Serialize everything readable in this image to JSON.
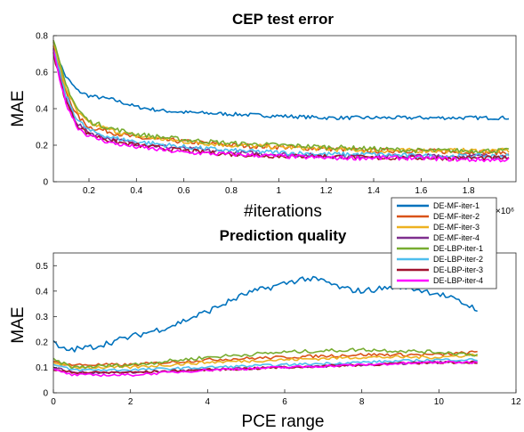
{
  "chart_data": [
    {
      "type": "line",
      "title": "CEP test error",
      "xlabel": "#iterations",
      "ylabel": "MAE",
      "x_exponent_label": "×10⁶",
      "xlim": [
        0.05,
        2.0
      ],
      "ylim": [
        0,
        0.8
      ],
      "xticks": [
        0.2,
        0.4,
        0.6,
        0.8,
        1,
        1.2,
        1.4,
        1.6,
        1.8
      ],
      "xticklabels": [
        "0.2",
        "0.4",
        "0.6",
        "0.8",
        "1",
        "1.2",
        "1.4",
        "1.6",
        "1.8"
      ],
      "yticks": [
        0,
        0.2,
        0.4,
        0.6,
        0.8
      ],
      "yticklabels": [
        "0",
        "0.2",
        "0.4",
        "0.6",
        "0.8"
      ],
      "grid": false,
      "series": [
        {
          "name": "DE-MF-iter-1",
          "color": "#0072bd",
          "x": [
            0.05,
            0.1,
            0.15,
            0.2,
            0.3,
            0.4,
            0.5,
            0.6,
            0.8,
            1.0,
            1.2,
            1.4,
            1.6,
            1.8,
            1.97
          ],
          "values": [
            0.74,
            0.58,
            0.5,
            0.47,
            0.45,
            0.41,
            0.39,
            0.38,
            0.37,
            0.36,
            0.35,
            0.35,
            0.35,
            0.35,
            0.35
          ],
          "noise": 0.01
        },
        {
          "name": "DE-MF-iter-2",
          "color": "#d95319",
          "x": [
            0.05,
            0.1,
            0.15,
            0.2,
            0.3,
            0.4,
            0.6,
            0.8,
            1.0,
            1.2,
            1.4,
            1.6,
            1.8,
            1.97
          ],
          "values": [
            0.74,
            0.5,
            0.36,
            0.3,
            0.27,
            0.24,
            0.22,
            0.2,
            0.19,
            0.18,
            0.17,
            0.17,
            0.16,
            0.16
          ],
          "noise": 0.013
        },
        {
          "name": "DE-MF-iter-3",
          "color": "#edb120",
          "x": [
            0.05,
            0.1,
            0.15,
            0.2,
            0.3,
            0.4,
            0.6,
            0.8,
            1.0,
            1.2,
            1.4,
            1.6,
            1.8,
            1.97
          ],
          "values": [
            0.76,
            0.52,
            0.38,
            0.32,
            0.28,
            0.25,
            0.22,
            0.2,
            0.19,
            0.18,
            0.17,
            0.17,
            0.17,
            0.17
          ],
          "noise": 0.013
        },
        {
          "name": "DE-MF-iter-4",
          "color": "#7e2f8e",
          "x": [
            0.05,
            0.1,
            0.15,
            0.2,
            0.3,
            0.4,
            0.6,
            0.8,
            1.0,
            1.2,
            1.4,
            1.6,
            1.8,
            1.97
          ],
          "values": [
            0.72,
            0.46,
            0.32,
            0.27,
            0.23,
            0.21,
            0.18,
            0.16,
            0.15,
            0.14,
            0.14,
            0.14,
            0.14,
            0.14
          ],
          "noise": 0.013
        },
        {
          "name": "DE-LBP-iter-1",
          "color": "#77ac30",
          "x": [
            0.05,
            0.1,
            0.15,
            0.2,
            0.3,
            0.4,
            0.6,
            0.8,
            1.0,
            1.2,
            1.4,
            1.6,
            1.8,
            1.97
          ],
          "values": [
            0.77,
            0.54,
            0.4,
            0.33,
            0.29,
            0.26,
            0.23,
            0.21,
            0.2,
            0.19,
            0.18,
            0.17,
            0.17,
            0.17
          ],
          "noise": 0.013
        },
        {
          "name": "DE-LBP-iter-2",
          "color": "#4dbeee",
          "x": [
            0.05,
            0.1,
            0.15,
            0.2,
            0.3,
            0.4,
            0.6,
            0.8,
            1.0,
            1.2,
            1.4,
            1.6,
            1.8,
            1.97
          ],
          "values": [
            0.73,
            0.48,
            0.34,
            0.28,
            0.24,
            0.22,
            0.19,
            0.17,
            0.16,
            0.15,
            0.15,
            0.14,
            0.14,
            0.14
          ],
          "noise": 0.013
        },
        {
          "name": "DE-LBP-iter-3",
          "color": "#a2142f",
          "x": [
            0.05,
            0.1,
            0.15,
            0.2,
            0.3,
            0.4,
            0.6,
            0.8,
            1.0,
            1.2,
            1.4,
            1.6,
            1.8,
            1.97
          ],
          "values": [
            0.7,
            0.45,
            0.31,
            0.26,
            0.22,
            0.2,
            0.17,
            0.15,
            0.14,
            0.14,
            0.13,
            0.13,
            0.13,
            0.13
          ],
          "noise": 0.012
        },
        {
          "name": "DE-LBP-iter-4",
          "color": "#ff00ff",
          "x": [
            0.05,
            0.1,
            0.15,
            0.2,
            0.3,
            0.4,
            0.6,
            0.8,
            1.0,
            1.2,
            1.4,
            1.6,
            1.8,
            1.97
          ],
          "values": [
            0.71,
            0.44,
            0.3,
            0.25,
            0.21,
            0.19,
            0.16,
            0.15,
            0.14,
            0.13,
            0.13,
            0.13,
            0.12,
            0.12
          ],
          "noise": 0.012
        }
      ]
    },
    {
      "type": "line",
      "title": "Prediction quality",
      "xlabel": "PCE range",
      "ylabel": "MAE",
      "xlim": [
        0,
        12
      ],
      "ylim": [
        0,
        0.55
      ],
      "xticks": [
        0,
        2,
        4,
        6,
        8,
        10,
        12
      ],
      "xticklabels": [
        "0",
        "2",
        "4",
        "6",
        "8",
        "10",
        "12"
      ],
      "yticks": [
        0,
        0.1,
        0.2,
        0.3,
        0.4,
        0.5
      ],
      "yticklabels": [
        "0",
        "0.1",
        "0.2",
        "0.3",
        "0.4",
        "0.5"
      ],
      "grid": false,
      "series": [
        {
          "name": "DE-MF-iter-1",
          "color": "#0072bd",
          "x": [
            0,
            0.2,
            0.5,
            1,
            2,
            3,
            4,
            5,
            6,
            6.5,
            7,
            7.5,
            8,
            9,
            10,
            10.5,
            11
          ],
          "values": [
            0.2,
            0.17,
            0.17,
            0.18,
            0.22,
            0.26,
            0.32,
            0.39,
            0.43,
            0.45,
            0.44,
            0.41,
            0.4,
            0.42,
            0.39,
            0.36,
            0.33
          ],
          "noise": 0.012
        },
        {
          "name": "DE-MF-iter-2",
          "color": "#d95319",
          "x": [
            0,
            0.5,
            2,
            4,
            6,
            8,
            10,
            11
          ],
          "values": [
            0.12,
            0.11,
            0.11,
            0.13,
            0.14,
            0.15,
            0.15,
            0.16
          ],
          "noise": 0.006
        },
        {
          "name": "DE-MF-iter-3",
          "color": "#edb120",
          "x": [
            0,
            0.5,
            2,
            4,
            6,
            8,
            10,
            11
          ],
          "values": [
            0.12,
            0.1,
            0.1,
            0.12,
            0.13,
            0.14,
            0.14,
            0.15
          ],
          "noise": 0.006
        },
        {
          "name": "DE-MF-iter-4",
          "color": "#7e2f8e",
          "x": [
            0,
            0.5,
            2,
            4,
            6,
            8,
            10,
            11
          ],
          "values": [
            0.1,
            0.08,
            0.08,
            0.09,
            0.1,
            0.11,
            0.12,
            0.12
          ],
          "noise": 0.005
        },
        {
          "name": "DE-LBP-iter-1",
          "color": "#77ac30",
          "x": [
            0,
            0.5,
            2,
            4,
            6,
            8,
            10,
            11
          ],
          "values": [
            0.13,
            0.1,
            0.11,
            0.14,
            0.16,
            0.17,
            0.16,
            0.15
          ],
          "noise": 0.007
        },
        {
          "name": "DE-LBP-iter-2",
          "color": "#4dbeee",
          "x": [
            0,
            0.5,
            2,
            4,
            6,
            8,
            10,
            11
          ],
          "values": [
            0.11,
            0.09,
            0.09,
            0.1,
            0.11,
            0.12,
            0.13,
            0.13
          ],
          "noise": 0.005
        },
        {
          "name": "DE-LBP-iter-3",
          "color": "#a2142f",
          "x": [
            0,
            0.5,
            2,
            4,
            6,
            8,
            10,
            11
          ],
          "values": [
            0.09,
            0.08,
            0.08,
            0.09,
            0.1,
            0.11,
            0.12,
            0.12
          ],
          "noise": 0.005
        },
        {
          "name": "DE-LBP-iter-4",
          "color": "#ff00ff",
          "x": [
            0,
            0.5,
            2,
            4,
            6,
            8,
            10,
            11
          ],
          "values": [
            0.09,
            0.07,
            0.07,
            0.09,
            0.1,
            0.11,
            0.12,
            0.12
          ],
          "noise": 0.005
        }
      ]
    }
  ]
}
